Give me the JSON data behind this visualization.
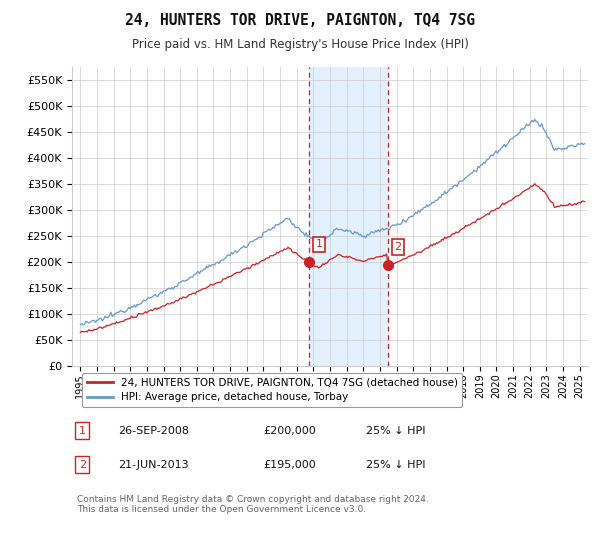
{
  "title": "24, HUNTERS TOR DRIVE, PAIGNTON, TQ4 7SG",
  "subtitle": "Price paid vs. HM Land Registry's House Price Index (HPI)",
  "ylabel_ticks": [
    "£0",
    "£50K",
    "£100K",
    "£150K",
    "£200K",
    "£250K",
    "£300K",
    "£350K",
    "£400K",
    "£450K",
    "£500K",
    "£550K"
  ],
  "ytick_values": [
    0,
    50000,
    100000,
    150000,
    200000,
    250000,
    300000,
    350000,
    400000,
    450000,
    500000,
    550000
  ],
  "ylim": [
    0,
    575000
  ],
  "xlim_start": 1994.5,
  "xlim_end": 2025.5,
  "hpi_color": "#6699cc",
  "price_color": "#cc2222",
  "background_color": "#ffffff",
  "grid_color": "#cccccc",
  "shade_color": "#ddeeff",
  "marker1_date": 2008.73,
  "marker1_price": 200000,
  "marker2_date": 2013.47,
  "marker2_price": 195000,
  "legend_label_price": "24, HUNTERS TOR DRIVE, PAIGNTON, TQ4 7SG (detached house)",
  "legend_label_hpi": "HPI: Average price, detached house, Torbay",
  "annotation1_label": "1",
  "annotation1_date": "26-SEP-2008",
  "annotation1_price": "£200,000",
  "annotation1_hpi": "25% ↓ HPI",
  "annotation2_label": "2",
  "annotation2_date": "21-JUN-2013",
  "annotation2_price": "£195,000",
  "annotation2_hpi": "25% ↓ HPI",
  "footer_text": "Contains HM Land Registry data © Crown copyright and database right 2024.\nThis data is licensed under the Open Government Licence v3.0.",
  "xtick_years": [
    1995,
    1996,
    1997,
    1998,
    1999,
    2000,
    2001,
    2002,
    2003,
    2004,
    2005,
    2006,
    2007,
    2008,
    2009,
    2010,
    2011,
    2012,
    2013,
    2014,
    2015,
    2016,
    2017,
    2018,
    2019,
    2020,
    2021,
    2022,
    2023,
    2024,
    2025
  ]
}
